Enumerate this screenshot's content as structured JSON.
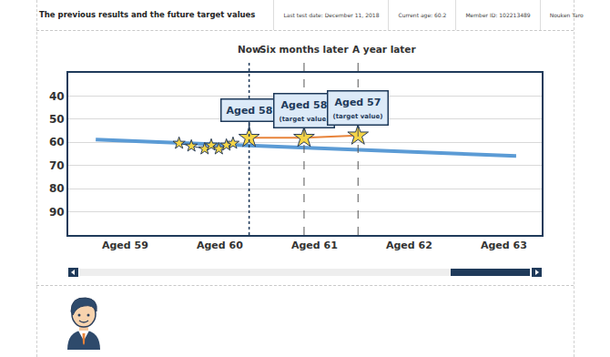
{
  "header": {
    "title": "The previous results and the future target values",
    "last_test": "Last test date: December 11, 2018",
    "current_age": "Current age: 60.2",
    "member_id": "Member ID: 102213489",
    "name": "Nouken Taro"
  },
  "chart_data": {
    "type": "line",
    "xlim": [
      58.4,
      63.4
    ],
    "xticks": [
      {
        "value": 59,
        "label": "Aged 59"
      },
      {
        "value": 60,
        "label": "Aged 60"
      },
      {
        "value": 61,
        "label": "Aged 61"
      },
      {
        "value": 62,
        "label": "Aged 62"
      },
      {
        "value": 63,
        "label": "Aged 63"
      }
    ],
    "ylim": [
      100,
      30
    ],
    "yticks": [
      40,
      50,
      60,
      70,
      80,
      90
    ],
    "grid": true,
    "annotations": [
      {
        "x": 60.31,
        "text": "Now"
      },
      {
        "x": 60.89,
        "text": "Six months later"
      },
      {
        "x": 61.46,
        "text": "A year later"
      }
    ],
    "series": [
      {
        "type": "line",
        "color": "#5b9bd5",
        "line_style": "solid",
        "x": [
          58.69,
          63.13
        ],
        "values": [
          58.8,
          65.9
        ]
      },
      {
        "type": "line",
        "color": "#2b3f5c",
        "line_style": "solid",
        "marker": "star",
        "x": [
          59.57,
          59.7,
          59.84,
          59.91,
          59.99,
          60.07,
          60.14
        ],
        "values": [
          60.4,
          61.6,
          62.8,
          61.2,
          62.8,
          61.2,
          60.4
        ]
      },
      {
        "type": "line",
        "color": "#e8833a",
        "line_style": "solid",
        "marker": "star",
        "x": [
          60.31,
          60.89,
          61.46
        ],
        "values": [
          58,
          58,
          57
        ],
        "data_labels": true,
        "value_labels": [
          "Aged 58",
          "Aged 58\n(target value)",
          "Aged 57\n(target value)"
        ]
      }
    ]
  }
}
